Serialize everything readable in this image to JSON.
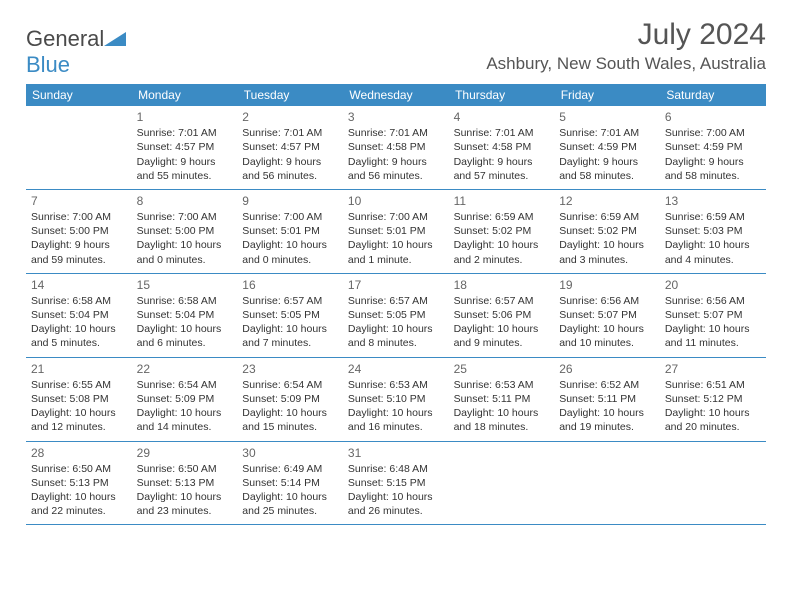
{
  "brand": {
    "part1": "General",
    "part2": "Blue"
  },
  "title": "July 2024",
  "location": "Ashbury, New South Wales, Australia",
  "colors": {
    "accent": "#3b8bc4",
    "text": "#333333",
    "heading": "#555555",
    "bg": "#ffffff"
  },
  "weekdays": [
    "Sunday",
    "Monday",
    "Tuesday",
    "Wednesday",
    "Thursday",
    "Friday",
    "Saturday"
  ],
  "weeks": [
    [
      {
        "n": "",
        "sr": "",
        "ss": "",
        "dl": ""
      },
      {
        "n": "1",
        "sr": "Sunrise: 7:01 AM",
        "ss": "Sunset: 4:57 PM",
        "dl": "Daylight: 9 hours and 55 minutes."
      },
      {
        "n": "2",
        "sr": "Sunrise: 7:01 AM",
        "ss": "Sunset: 4:57 PM",
        "dl": "Daylight: 9 hours and 56 minutes."
      },
      {
        "n": "3",
        "sr": "Sunrise: 7:01 AM",
        "ss": "Sunset: 4:58 PM",
        "dl": "Daylight: 9 hours and 56 minutes."
      },
      {
        "n": "4",
        "sr": "Sunrise: 7:01 AM",
        "ss": "Sunset: 4:58 PM",
        "dl": "Daylight: 9 hours and 57 minutes."
      },
      {
        "n": "5",
        "sr": "Sunrise: 7:01 AM",
        "ss": "Sunset: 4:59 PM",
        "dl": "Daylight: 9 hours and 58 minutes."
      },
      {
        "n": "6",
        "sr": "Sunrise: 7:00 AM",
        "ss": "Sunset: 4:59 PM",
        "dl": "Daylight: 9 hours and 58 minutes."
      }
    ],
    [
      {
        "n": "7",
        "sr": "Sunrise: 7:00 AM",
        "ss": "Sunset: 5:00 PM",
        "dl": "Daylight: 9 hours and 59 minutes."
      },
      {
        "n": "8",
        "sr": "Sunrise: 7:00 AM",
        "ss": "Sunset: 5:00 PM",
        "dl": "Daylight: 10 hours and 0 minutes."
      },
      {
        "n": "9",
        "sr": "Sunrise: 7:00 AM",
        "ss": "Sunset: 5:01 PM",
        "dl": "Daylight: 10 hours and 0 minutes."
      },
      {
        "n": "10",
        "sr": "Sunrise: 7:00 AM",
        "ss": "Sunset: 5:01 PM",
        "dl": "Daylight: 10 hours and 1 minute."
      },
      {
        "n": "11",
        "sr": "Sunrise: 6:59 AM",
        "ss": "Sunset: 5:02 PM",
        "dl": "Daylight: 10 hours and 2 minutes."
      },
      {
        "n": "12",
        "sr": "Sunrise: 6:59 AM",
        "ss": "Sunset: 5:02 PM",
        "dl": "Daylight: 10 hours and 3 minutes."
      },
      {
        "n": "13",
        "sr": "Sunrise: 6:59 AM",
        "ss": "Sunset: 5:03 PM",
        "dl": "Daylight: 10 hours and 4 minutes."
      }
    ],
    [
      {
        "n": "14",
        "sr": "Sunrise: 6:58 AM",
        "ss": "Sunset: 5:04 PM",
        "dl": "Daylight: 10 hours and 5 minutes."
      },
      {
        "n": "15",
        "sr": "Sunrise: 6:58 AM",
        "ss": "Sunset: 5:04 PM",
        "dl": "Daylight: 10 hours and 6 minutes."
      },
      {
        "n": "16",
        "sr": "Sunrise: 6:57 AM",
        "ss": "Sunset: 5:05 PM",
        "dl": "Daylight: 10 hours and 7 minutes."
      },
      {
        "n": "17",
        "sr": "Sunrise: 6:57 AM",
        "ss": "Sunset: 5:05 PM",
        "dl": "Daylight: 10 hours and 8 minutes."
      },
      {
        "n": "18",
        "sr": "Sunrise: 6:57 AM",
        "ss": "Sunset: 5:06 PM",
        "dl": "Daylight: 10 hours and 9 minutes."
      },
      {
        "n": "19",
        "sr": "Sunrise: 6:56 AM",
        "ss": "Sunset: 5:07 PM",
        "dl": "Daylight: 10 hours and 10 minutes."
      },
      {
        "n": "20",
        "sr": "Sunrise: 6:56 AM",
        "ss": "Sunset: 5:07 PM",
        "dl": "Daylight: 10 hours and 11 minutes."
      }
    ],
    [
      {
        "n": "21",
        "sr": "Sunrise: 6:55 AM",
        "ss": "Sunset: 5:08 PM",
        "dl": "Daylight: 10 hours and 12 minutes."
      },
      {
        "n": "22",
        "sr": "Sunrise: 6:54 AM",
        "ss": "Sunset: 5:09 PM",
        "dl": "Daylight: 10 hours and 14 minutes."
      },
      {
        "n": "23",
        "sr": "Sunrise: 6:54 AM",
        "ss": "Sunset: 5:09 PM",
        "dl": "Daylight: 10 hours and 15 minutes."
      },
      {
        "n": "24",
        "sr": "Sunrise: 6:53 AM",
        "ss": "Sunset: 5:10 PM",
        "dl": "Daylight: 10 hours and 16 minutes."
      },
      {
        "n": "25",
        "sr": "Sunrise: 6:53 AM",
        "ss": "Sunset: 5:11 PM",
        "dl": "Daylight: 10 hours and 18 minutes."
      },
      {
        "n": "26",
        "sr": "Sunrise: 6:52 AM",
        "ss": "Sunset: 5:11 PM",
        "dl": "Daylight: 10 hours and 19 minutes."
      },
      {
        "n": "27",
        "sr": "Sunrise: 6:51 AM",
        "ss": "Sunset: 5:12 PM",
        "dl": "Daylight: 10 hours and 20 minutes."
      }
    ],
    [
      {
        "n": "28",
        "sr": "Sunrise: 6:50 AM",
        "ss": "Sunset: 5:13 PM",
        "dl": "Daylight: 10 hours and 22 minutes."
      },
      {
        "n": "29",
        "sr": "Sunrise: 6:50 AM",
        "ss": "Sunset: 5:13 PM",
        "dl": "Daylight: 10 hours and 23 minutes."
      },
      {
        "n": "30",
        "sr": "Sunrise: 6:49 AM",
        "ss": "Sunset: 5:14 PM",
        "dl": "Daylight: 10 hours and 25 minutes."
      },
      {
        "n": "31",
        "sr": "Sunrise: 6:48 AM",
        "ss": "Sunset: 5:15 PM",
        "dl": "Daylight: 10 hours and 26 minutes."
      },
      {
        "n": "",
        "sr": "",
        "ss": "",
        "dl": ""
      },
      {
        "n": "",
        "sr": "",
        "ss": "",
        "dl": ""
      },
      {
        "n": "",
        "sr": "",
        "ss": "",
        "dl": ""
      }
    ]
  ]
}
